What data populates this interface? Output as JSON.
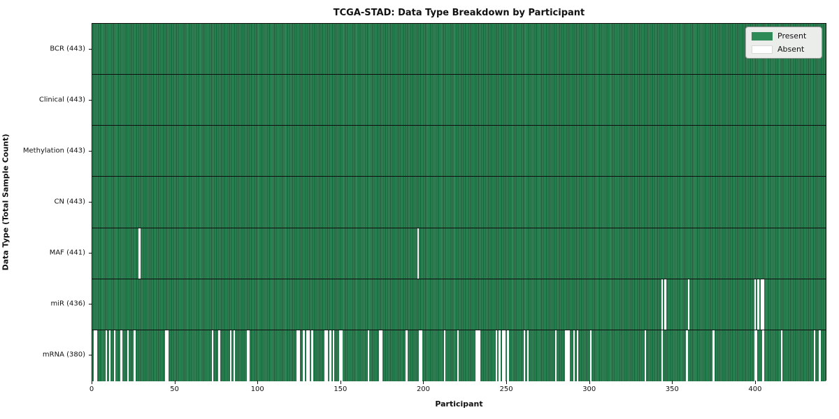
{
  "title": "TCGA-STAD: Data Type Breakdown by Participant",
  "legend": {
    "items": [
      {
        "label": "Present",
        "color": "#2e8b57"
      },
      {
        "label": "Absent",
        "color": "#ffffff"
      }
    ]
  },
  "chart_data": {
    "type": "heatmap",
    "title": "TCGA-STAD: Data Type Breakdown by Participant",
    "xlabel": "Participant",
    "ylabel": "Data Type (Total Sample Count)",
    "x_range": [
      0,
      443
    ],
    "n_participants": 443,
    "x_ticks": [
      0,
      50,
      100,
      150,
      200,
      250,
      300,
      350,
      400
    ],
    "grid": false,
    "legend_position": "upper right",
    "colors": {
      "present": "#2e8b57",
      "present_edge": "#1e5a38",
      "absent": "#ffffff"
    },
    "rows": [
      {
        "label": "BCR (443)",
        "data_type": "BCR",
        "count": 443,
        "absent_participants": []
      },
      {
        "label": "Clinical (443)",
        "data_type": "Clinical",
        "count": 443,
        "absent_participants": []
      },
      {
        "label": "Methylation (443)",
        "data_type": "Methylation",
        "count": 443,
        "absent_participants": []
      },
      {
        "label": "CN (443)",
        "data_type": "CN",
        "count": 443,
        "absent_participants": []
      },
      {
        "label": "MAF (441)",
        "data_type": "MAF",
        "count": 441,
        "absent_participants": [
          28,
          196
        ]
      },
      {
        "label": "miR (436)",
        "data_type": "miR",
        "count": 436,
        "absent_participants": [
          343,
          345,
          359,
          399,
          401,
          403,
          404
        ]
      },
      {
        "label": "mRNA (380)",
        "data_type": "mRNA",
        "count": 380,
        "absent_participants": [
          1,
          2,
          8,
          10,
          13,
          17,
          21,
          25,
          44,
          45,
          72,
          76,
          83,
          85,
          93,
          94,
          123,
          124,
          127,
          129,
          130,
          132,
          140,
          141,
          143,
          145,
          149,
          150,
          166,
          173,
          174,
          189,
          197,
          198,
          212,
          220,
          231,
          232,
          233,
          243,
          245,
          247,
          248,
          250,
          260,
          262,
          279,
          285,
          286,
          287,
          290,
          292,
          300,
          333,
          343,
          358,
          374,
          399,
          400,
          404,
          415,
          435,
          438
        ]
      }
    ]
  }
}
